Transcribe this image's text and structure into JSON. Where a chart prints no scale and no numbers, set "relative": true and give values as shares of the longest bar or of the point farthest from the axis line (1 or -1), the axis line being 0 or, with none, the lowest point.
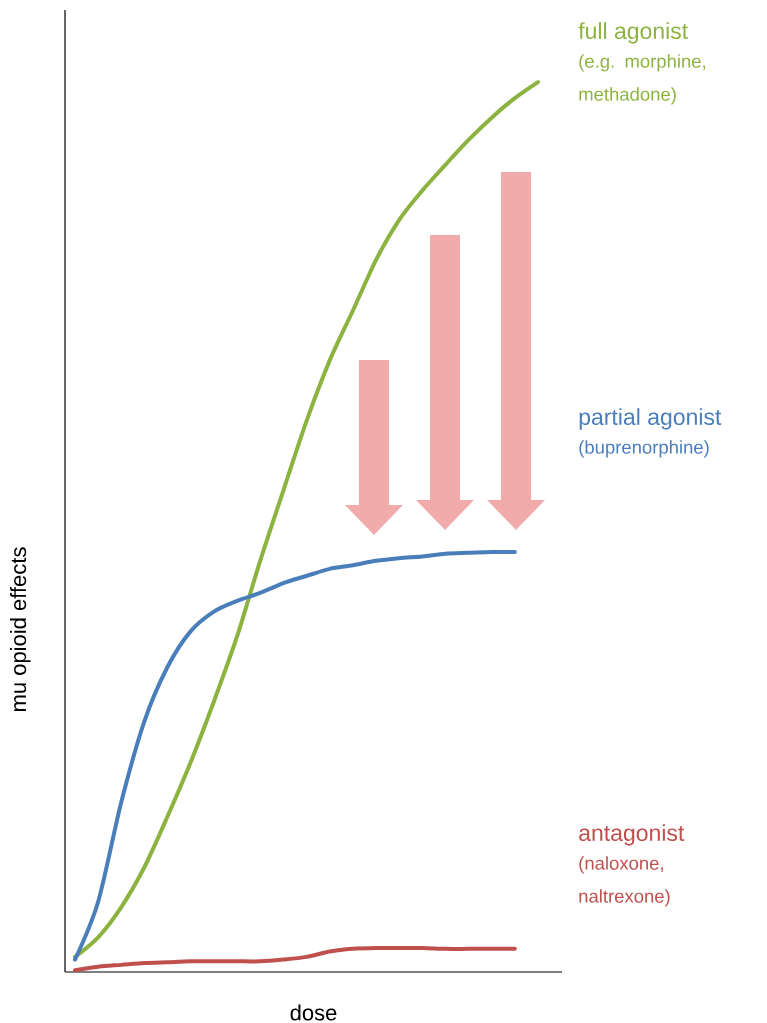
{
  "chart_data": {
    "type": "line",
    "relative": true,
    "xlabel": "dose",
    "ylabel": "mu opioid effects",
    "marker": "none",
    "line_style": "solid",
    "categories": [
      null,
      null,
      null,
      null,
      null,
      null,
      null,
      null,
      null,
      null,
      null,
      null,
      null,
      null,
      null,
      null,
      null,
      null,
      null,
      null,
      null
    ],
    "series": [
      {
        "name": "full agonist",
        "color": "#8cb33f",
        "values": [
          0.017,
          0.039,
          0.073,
          0.118,
          0.175,
          0.236,
          0.304,
          0.377,
          0.462,
          0.541,
          0.619,
          0.687,
          0.743,
          0.8,
          0.845,
          0.878,
          0.907,
          0.935,
          0.96,
          0.982,
          1
        ]
      },
      {
        "name": "partial agonist",
        "color": "#4a7ebb",
        "values": [
          0.014,
          0.079,
          0.191,
          0.282,
          0.343,
          0.383,
          0.405,
          0.417,
          0.426,
          0.437,
          0.445,
          0.453,
          0.457,
          0.462,
          0.465,
          0.467,
          0.47,
          0.471,
          0.472,
          0.472,
          null
        ]
      },
      {
        "name": "antagonist",
        "color": "#c0504d",
        "values": [
          0.002,
          0.006,
          0.008,
          0.01,
          0.011,
          0.012,
          0.012,
          0.012,
          0.012,
          0.014,
          0.017,
          0.023,
          0.026,
          0.027,
          0.027,
          0.027,
          0.026,
          0.026,
          0.026,
          0.026,
          null
        ]
      }
    ],
    "annotations": [
      "(e.g. morphine, methadone)",
      "(buprenorphine)",
      "(naloxone, naltrexone)"
    ]
  }
}
